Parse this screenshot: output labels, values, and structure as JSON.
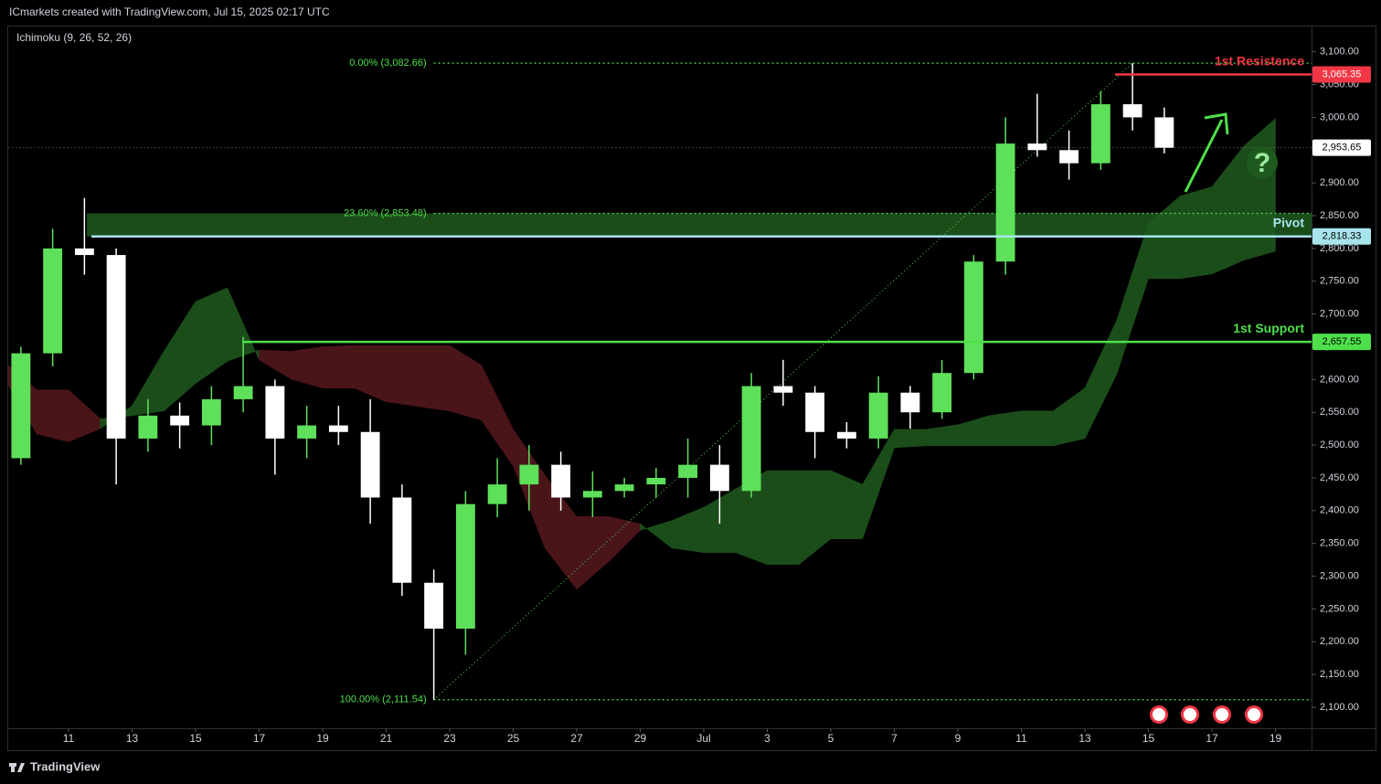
{
  "chart_data": {
    "type": "candlestick",
    "header": "ICmarkets created with TradingView.com, Jul 15, 2025 02:17 UTC",
    "indicator": "Ichimoku (9, 26, 52, 26)",
    "brand": "TradingView",
    "up_color": "#5ee05a",
    "down_color": "#ffffff",
    "x": [
      "2025-06-09",
      "2025-06-10",
      "2025-06-11",
      "2025-06-12",
      "2025-06-13",
      "2025-06-14",
      "2025-06-15",
      "2025-06-16",
      "2025-06-17",
      "2025-06-18",
      "2025-06-19",
      "2025-06-20",
      "2025-06-21",
      "2025-06-22",
      "2025-06-23",
      "2025-06-24",
      "2025-06-25",
      "2025-06-26",
      "2025-06-27",
      "2025-06-28",
      "2025-06-29",
      "2025-06-30",
      "2025-07-01",
      "2025-07-02",
      "2025-07-03",
      "2025-07-04",
      "2025-07-05",
      "2025-07-06",
      "2025-07-07",
      "2025-07-08",
      "2025-07-09",
      "2025-07-10",
      "2025-07-11",
      "2025-07-12",
      "2025-07-13",
      "2025-07-14",
      "2025-07-15"
    ],
    "open": [
      2480,
      2640,
      2800,
      2790,
      2510,
      2545,
      2530,
      2570,
      2590,
      2510,
      2530,
      2520,
      2420,
      2290,
      2220,
      2410,
      2440,
      2470,
      2420,
      2430,
      2440,
      2450,
      2470,
      2430,
      2590,
      2580,
      2520,
      2510,
      2580,
      2550,
      2610,
      2780,
      2960,
      2950,
      2930,
      3020,
      3000
    ],
    "high": [
      2650,
      2830,
      2877,
      2800,
      2570,
      2565,
      2590,
      2665,
      2600,
      2560,
      2560,
      2570,
      2440,
      2310,
      2430,
      2480,
      2500,
      2490,
      2460,
      2450,
      2465,
      2510,
      2500,
      2610,
      2630,
      2590,
      2535,
      2605,
      2590,
      2630,
      2790,
      3000,
      3036,
      2980,
      3040,
      3082.66,
      3015
    ],
    "low": [
      2470,
      2620,
      2760,
      2440,
      2490,
      2495,
      2500,
      2550,
      2455,
      2480,
      2500,
      2380,
      2270,
      2111.54,
      2180,
      2390,
      2400,
      2400,
      2390,
      2420,
      2420,
      2420,
      2380,
      2420,
      2560,
      2480,
      2495,
      2495,
      2525,
      2540,
      2600,
      2760,
      2940,
      2905,
      2920,
      2980,
      2945
    ],
    "close": [
      2640,
      2800,
      2790,
      2510,
      2545,
      2530,
      2570,
      2590,
      2510,
      2530,
      2520,
      2420,
      2290,
      2220,
      2410,
      2440,
      2470,
      2420,
      2430,
      2440,
      2450,
      2470,
      2430,
      2590,
      2580,
      2520,
      2510,
      2580,
      2550,
      2610,
      2780,
      2960,
      2950,
      2930,
      3020,
      3000,
      2953.65
    ],
    "cloud": {
      "x": [
        "2025-06-09",
        "2025-06-10",
        "2025-06-11",
        "2025-06-12",
        "2025-06-13",
        "2025-06-14",
        "2025-06-15",
        "2025-06-16",
        "2025-06-17",
        "2025-06-18",
        "2025-06-19",
        "2025-06-20",
        "2025-06-21",
        "2025-06-22",
        "2025-06-23",
        "2025-06-24",
        "2025-06-25",
        "2025-06-26",
        "2025-06-27",
        "2025-06-28",
        "2025-06-29",
        "2025-06-30",
        "2025-07-01",
        "2025-07-02",
        "2025-07-03",
        "2025-07-04",
        "2025-07-05",
        "2025-07-06",
        "2025-07-07",
        "2025-07-08",
        "2025-07-09",
        "2025-07-10",
        "2025-07-11",
        "2025-07-12",
        "2025-07-13",
        "2025-07-14",
        "2025-07-15",
        "2025-07-16",
        "2025-07-17",
        "2025-07-18",
        "2025-07-19"
      ],
      "span_a": [
        2600,
        2517,
        2505,
        2525,
        2560,
        2643,
        2719,
        2740,
        2630,
        2601,
        2587,
        2587,
        2566,
        2559,
        2552,
        2538,
        2468,
        2343,
        2280,
        2322,
        2370,
        2385,
        2405,
        2433,
        2461,
        2461,
        2461,
        2440,
        2524,
        2524,
        2531,
        2545,
        2552,
        2552,
        2587,
        2690,
        2838,
        2880,
        2894,
        2956,
        2998
      ],
      "span_b": [
        2626,
        2584,
        2584,
        2540,
        2545,
        2552,
        2594,
        2628,
        2645,
        2643,
        2650,
        2652,
        2652,
        2652,
        2652,
        2622,
        2524,
        2454,
        2391,
        2391,
        2380,
        2343,
        2336,
        2336,
        2318,
        2318,
        2357,
        2357,
        2496,
        2499,
        2499,
        2499,
        2499,
        2499,
        2510,
        2608,
        2754,
        2754,
        2761,
        2782,
        2796
      ],
      "up_color": "#1b4d1b",
      "down_color": "#4a1519"
    },
    "levels": [
      {
        "name": "1st Resistence",
        "value": 3065.35,
        "label": "3,065.35",
        "color": "#f23645"
      },
      {
        "name": "Pivot",
        "value": 2818.33,
        "label": "2,818.33",
        "color": "#a8e4ec"
      },
      {
        "name": "1st Support",
        "value": 2657.55,
        "label": "2,657.55",
        "color": "#4ee04a"
      }
    ],
    "current_price": {
      "value": 2953.65,
      "label": "2,953.65"
    },
    "fib_levels": [
      {
        "label": "0.00% (3,082.66)",
        "value": 3082.66
      },
      {
        "label": "23.60% (2,853.48)",
        "value": 2853.48
      },
      {
        "label": "100.00% (2,111.54)",
        "value": 2111.54
      }
    ],
    "fib_color": "#4ee04a",
    "annotation": "?",
    "xlim": [
      "2025-06-09",
      "2025-07-20"
    ],
    "xticks": [
      {
        "value": "2025-06-11",
        "label": "11"
      },
      {
        "value": "2025-06-13",
        "label": "13"
      },
      {
        "value": "2025-06-15",
        "label": "15"
      },
      {
        "value": "2025-06-17",
        "label": "17"
      },
      {
        "value": "2025-06-19",
        "label": "19"
      },
      {
        "value": "2025-06-21",
        "label": "21"
      },
      {
        "value": "2025-06-23",
        "label": "23"
      },
      {
        "value": "2025-06-25",
        "label": "25"
      },
      {
        "value": "2025-06-27",
        "label": "27"
      },
      {
        "value": "2025-06-29",
        "label": "29"
      },
      {
        "value": "2025-07-01",
        "label": "Jul"
      },
      {
        "value": "2025-07-03",
        "label": "3"
      },
      {
        "value": "2025-07-05",
        "label": "5"
      },
      {
        "value": "2025-07-07",
        "label": "7"
      },
      {
        "value": "2025-07-09",
        "label": "9"
      },
      {
        "value": "2025-07-11",
        "label": "11"
      },
      {
        "value": "2025-07-13",
        "label": "13"
      },
      {
        "value": "2025-07-15",
        "label": "15"
      },
      {
        "value": "2025-07-17",
        "label": "17"
      },
      {
        "value": "2025-07-19",
        "label": "19"
      }
    ],
    "ylim": [
      2068,
      3140
    ],
    "yticks": [
      {
        "value": 2100,
        "label": "2,100.00"
      },
      {
        "value": 2150,
        "label": "2,150.00"
      },
      {
        "value": 2200,
        "label": "2,200.00"
      },
      {
        "value": 2250,
        "label": "2,250.00"
      },
      {
        "value": 2300,
        "label": "2,300.00"
      },
      {
        "value": 2350,
        "label": "2,350.00"
      },
      {
        "value": 2400,
        "label": "2,400.00"
      },
      {
        "value": 2450,
        "label": "2,450.00"
      },
      {
        "value": 2500,
        "label": "2,500.00"
      },
      {
        "value": 2550,
        "label": "2,550.00"
      },
      {
        "value": 2600,
        "label": "2,600.00"
      },
      {
        "value": 2650,
        "label": "2,650.00"
      },
      {
        "value": 2700,
        "label": "2,700.00"
      },
      {
        "value": 2750,
        "label": "2,750.00"
      },
      {
        "value": 2800,
        "label": "2,800.00"
      },
      {
        "value": 2850,
        "label": "2,850.00"
      },
      {
        "value": 2900,
        "label": "2,900.00"
      },
      {
        "value": 2950,
        "label": "2,950.00"
      },
      {
        "value": 3000,
        "label": "3,000.00"
      },
      {
        "value": 3050,
        "label": "3,050.00"
      },
      {
        "value": 3100,
        "label": "3,100.00"
      }
    ]
  }
}
